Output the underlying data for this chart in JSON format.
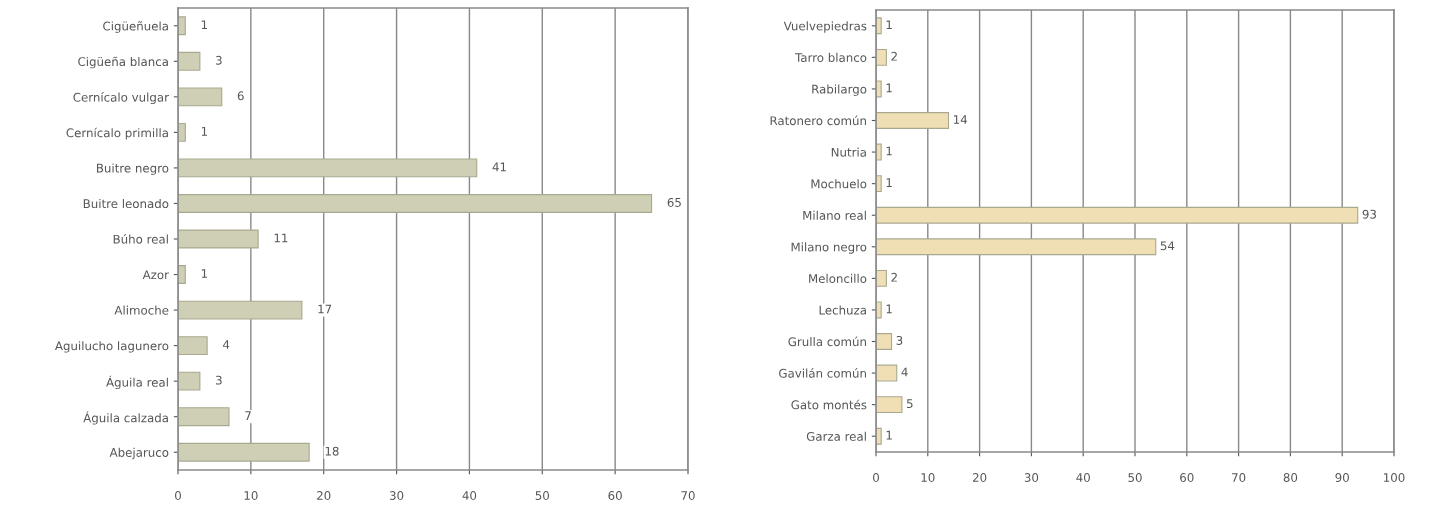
{
  "chart_data": [
    {
      "type": "bar",
      "orientation": "horizontal",
      "categories": [
        "Cigüeñuela",
        "Cigüeña blanca",
        "Cernícalo vulgar",
        "Cernícalo primilla",
        "Buitre negro",
        "Buitre leonado",
        "Búho real",
        "Azor",
        "Alimoche",
        "Aguilucho lagunero",
        "Águila real",
        "Águila calzada",
        "Abejaruco"
      ],
      "values": [
        1,
        3,
        6,
        1,
        41,
        65,
        11,
        1,
        17,
        4,
        3,
        7,
        18
      ],
      "color": "#cfcfb6",
      "xlim": [
        0,
        70
      ],
      "xticks": [
        0,
        10,
        20,
        30,
        40,
        50,
        60,
        70
      ],
      "grid": "x",
      "data_labels": true
    },
    {
      "type": "bar",
      "orientation": "horizontal",
      "categories": [
        "Vuelvepiedras",
        "Tarro blanco",
        "Rabilargo",
        "Ratonero común",
        "Nutria",
        "Mochuelo",
        "Milano real",
        "Milano negro",
        "Meloncillo",
        "Lechuza",
        "Grulla común",
        "Gavilán común",
        "Gato montés",
        "Garza real"
      ],
      "values": [
        1,
        2,
        1,
        14,
        1,
        1,
        93,
        54,
        2,
        1,
        3,
        4,
        5,
        1
      ],
      "color": "#f0dfb4",
      "xlim": [
        0,
        100
      ],
      "xticks": [
        0,
        10,
        20,
        30,
        40,
        50,
        60,
        70,
        80,
        90,
        100
      ],
      "grid": "x",
      "data_labels": true
    }
  ]
}
